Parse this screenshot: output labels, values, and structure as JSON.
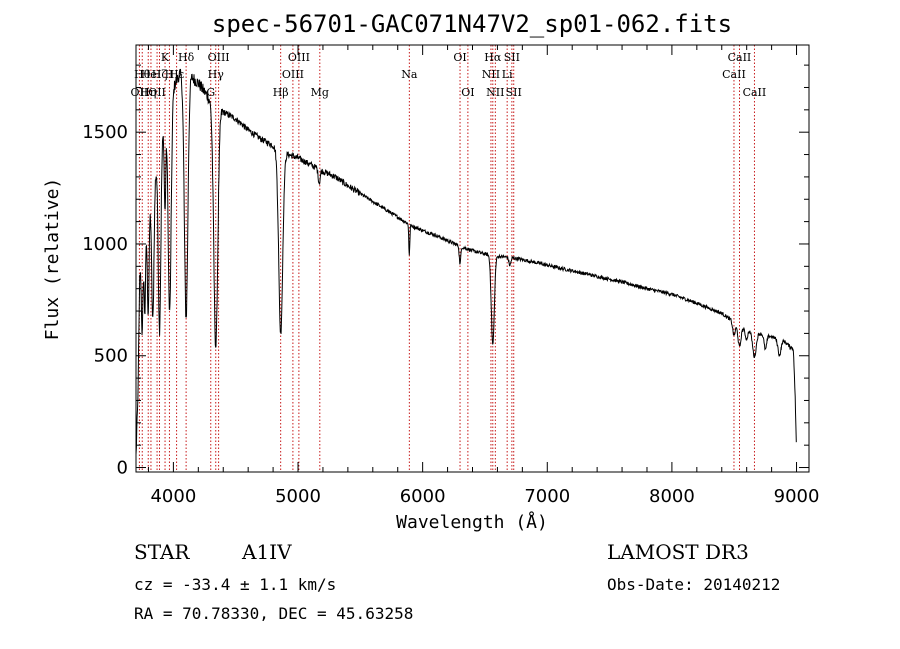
{
  "chart_data": {
    "type": "line",
    "title": "spec-56701-GAC071N47V2_sp01-062.fits",
    "xlabel": "Wavelength (Å)",
    "ylabel": "Flux (relative)",
    "xlim": [
      3700,
      9100
    ],
    "ylim": [
      -20,
      1890
    ],
    "xticks": [
      4000,
      5000,
      6000,
      7000,
      8000,
      9000
    ],
    "xtick_labels": [
      "4000",
      "5000",
      "6000",
      "7000",
      "8000",
      "9000"
    ],
    "yticks": [
      0,
      500,
      1000,
      1500
    ],
    "ytick_labels": [
      "0",
      "500",
      "1000",
      "1500"
    ],
    "grid": false,
    "continuum": [
      [
        3700,
        50
      ],
      [
        3715,
        300
      ],
      [
        3730,
        850
      ],
      [
        3760,
        1000
      ],
      [
        3800,
        1150
      ],
      [
        3850,
        1300
      ],
      [
        3900,
        1450
      ],
      [
        3950,
        1600
      ],
      [
        4000,
        1700
      ],
      [
        4050,
        1760
      ],
      [
        4100,
        1770
      ],
      [
        4200,
        1720
      ],
      [
        4300,
        1640
      ],
      [
        4400,
        1590
      ],
      [
        4500,
        1560
      ],
      [
        4600,
        1510
      ],
      [
        4700,
        1470
      ],
      [
        4800,
        1440
      ],
      [
        4900,
        1405
      ],
      [
        5000,
        1385
      ],
      [
        5100,
        1355
      ],
      [
        5200,
        1325
      ],
      [
        5300,
        1300
      ],
      [
        5400,
        1260
      ],
      [
        5500,
        1225
      ],
      [
        5600,
        1190
      ],
      [
        5700,
        1155
      ],
      [
        5800,
        1120
      ],
      [
        5900,
        1085
      ],
      [
        6000,
        1060
      ],
      [
        6100,
        1040
      ],
      [
        6200,
        1015
      ],
      [
        6300,
        990
      ],
      [
        6400,
        970
      ],
      [
        6500,
        955
      ],
      [
        6600,
        945
      ],
      [
        6700,
        940
      ],
      [
        6800,
        930
      ],
      [
        6900,
        918
      ],
      [
        7000,
        905
      ],
      [
        7200,
        880
      ],
      [
        7400,
        855
      ],
      [
        7600,
        830
      ],
      [
        7800,
        800
      ],
      [
        8000,
        775
      ],
      [
        8200,
        735
      ],
      [
        8400,
        690
      ],
      [
        8500,
        650
      ],
      [
        8600,
        615
      ],
      [
        8700,
        600
      ],
      [
        8800,
        585
      ],
      [
        8900,
        565
      ],
      [
        8950,
        540
      ],
      [
        8975,
        530
      ],
      [
        8990,
        300
      ],
      [
        9000,
        60
      ]
    ],
    "absorption_features": [
      {
        "center": 3750,
        "depth": 350,
        "width": 6
      },
      {
        "center": 3771,
        "depth": 350,
        "width": 6
      },
      {
        "center": 3798,
        "depth": 450,
        "width": 7
      },
      {
        "center": 3835,
        "depth": 600,
        "width": 9
      },
      {
        "center": 3889,
        "depth": 800,
        "width": 10
      },
      {
        "center": 3933,
        "depth": 400,
        "width": 6
      },
      {
        "center": 3970,
        "depth": 950,
        "width": 12
      },
      {
        "center": 4102,
        "depth": 1100,
        "width": 14
      },
      {
        "center": 4340,
        "depth": 1080,
        "width": 16
      },
      {
        "center": 4861,
        "depth": 820,
        "width": 16
      },
      {
        "center": 5170,
        "depth": 60,
        "width": 8
      },
      {
        "center": 5893,
        "depth": 140,
        "width": 4
      },
      {
        "center": 6300,
        "depth": 80,
        "width": 6
      },
      {
        "center": 6563,
        "depth": 400,
        "width": 12
      },
      {
        "center": 6700,
        "depth": 35,
        "width": 8
      },
      {
        "center": 8498,
        "depth": 60,
        "width": 10
      },
      {
        "center": 8542,
        "depth": 95,
        "width": 12
      },
      {
        "center": 8598,
        "depth": 40,
        "width": 10
      },
      {
        "center": 8662,
        "depth": 110,
        "width": 14
      },
      {
        "center": 8750,
        "depth": 65,
        "width": 10
      },
      {
        "center": 8863,
        "depth": 70,
        "width": 12
      }
    ],
    "reference_lines": [
      {
        "x": 3727,
        "label": "OII",
        "row": 2
      },
      {
        "x": 3750,
        "label": "Hθ",
        "row": 1
      },
      {
        "x": 3798,
        "label": "Hη",
        "row": 2
      },
      {
        "x": 3820,
        "label": "HeI",
        "row": 1
      },
      {
        "x": 3869,
        "label": "OII",
        "row": 2
      },
      {
        "x": 3889,
        "label": "Hζ",
        "row": 1
      },
      {
        "x": 3933,
        "label": "K",
        "row": 0
      },
      {
        "x": 3968,
        "label": "H",
        "row": 1
      },
      {
        "x": 4026,
        "label": "Hε",
        "row": 1
      },
      {
        "x": 4102,
        "label": "Hδ",
        "row": 0
      },
      {
        "x": 4300,
        "label": "G",
        "row": 2
      },
      {
        "x": 4340,
        "label": "Hγ",
        "row": 1
      },
      {
        "x": 4363,
        "label": "OIII",
        "row": 0
      },
      {
        "x": 4861,
        "label": "Hβ",
        "row": 2
      },
      {
        "x": 4959,
        "label": "OIII",
        "row": 1
      },
      {
        "x": 5007,
        "label": "OIII",
        "row": 0
      },
      {
        "x": 5175,
        "label": "Mg",
        "row": 2
      },
      {
        "x": 5893,
        "label": "Na",
        "row": 1
      },
      {
        "x": 6300,
        "label": "OI",
        "row": 0
      },
      {
        "x": 6363,
        "label": "OI",
        "row": 2
      },
      {
        "x": 6548,
        "label": "NII",
        "row": 1
      },
      {
        "x": 6563,
        "label": "Hα",
        "row": 0
      },
      {
        "x": 6583,
        "label": "NII",
        "row": 2
      },
      {
        "x": 6678,
        "label": "Li",
        "row": 1
      },
      {
        "x": 6716,
        "label": "SII",
        "row": 0
      },
      {
        "x": 6731,
        "label": "SII",
        "row": 2
      },
      {
        "x": 8498,
        "label": "CaII",
        "row": 1
      },
      {
        "x": 8542,
        "label": "CaII",
        "row": 0
      },
      {
        "x": 8662,
        "label": "CaII",
        "row": 2
      }
    ]
  },
  "info": {
    "object_class": "STAR",
    "subclass": "A1IV",
    "survey": "LAMOST DR3",
    "redshift_text": "cz = -33.4 ± 1.1 km/s",
    "obs_date_text": "Obs-Date: 20140212",
    "coords_text": "RA =  70.78330, DEC =  45.63258"
  },
  "colors": {
    "spectrum": "#000000",
    "reference_line": "#c00000",
    "axes": "#000000",
    "background": "#ffffff"
  }
}
